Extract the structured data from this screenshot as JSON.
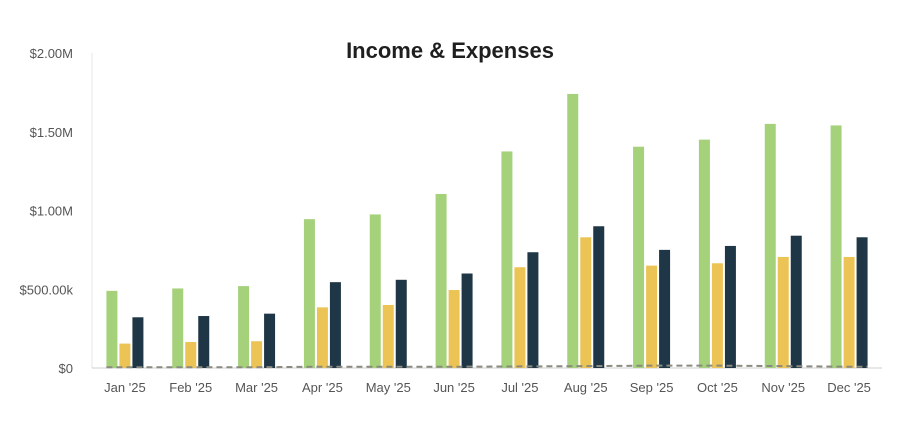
{
  "chart_data": {
    "type": "bar",
    "title": "Income & Expenses",
    "xlabel": "",
    "ylabel": "",
    "categories": [
      "Jan '25",
      "Feb '25",
      "Mar '25",
      "Apr '25",
      "May '25",
      "Jun '25",
      "Jul '25",
      "Aug '25",
      "Sep '25",
      "Oct '25",
      "Nov '25",
      "Dec '25"
    ],
    "series": [
      {
        "values": [
          490000,
          505000,
          520000,
          945000,
          975000,
          1105000,
          1375000,
          1740000,
          1405000,
          1450000,
          1550000,
          1540000
        ],
        "color": "#a5d17b"
      },
      {
        "values": [
          155000,
          165000,
          170000,
          385000,
          400000,
          495000,
          640000,
          830000,
          650000,
          665000,
          705000,
          705000
        ],
        "color": "#ecc456"
      },
      {
        "values": [
          322000,
          330000,
          345000,
          545000,
          560000,
          600000,
          735000,
          900000,
          750000,
          775000,
          840000,
          830000
        ],
        "color": "#1f3646"
      }
    ],
    "net_line": {
      "values": [
        5000,
        5000,
        5000,
        8000,
        8000,
        8000,
        10000,
        12000,
        15000,
        15000,
        12000,
        8000
      ],
      "color": "#8a8a80",
      "style": "dashed"
    },
    "yticks": [
      0,
      500000,
      1000000,
      1500000,
      2000000
    ],
    "ytick_labels": [
      "$0",
      "$500.00k",
      "$1.00M",
      "$1.50M",
      "$2.00M"
    ],
    "ylim": [
      0,
      2000000
    ],
    "grid": false,
    "legend": "none"
  }
}
